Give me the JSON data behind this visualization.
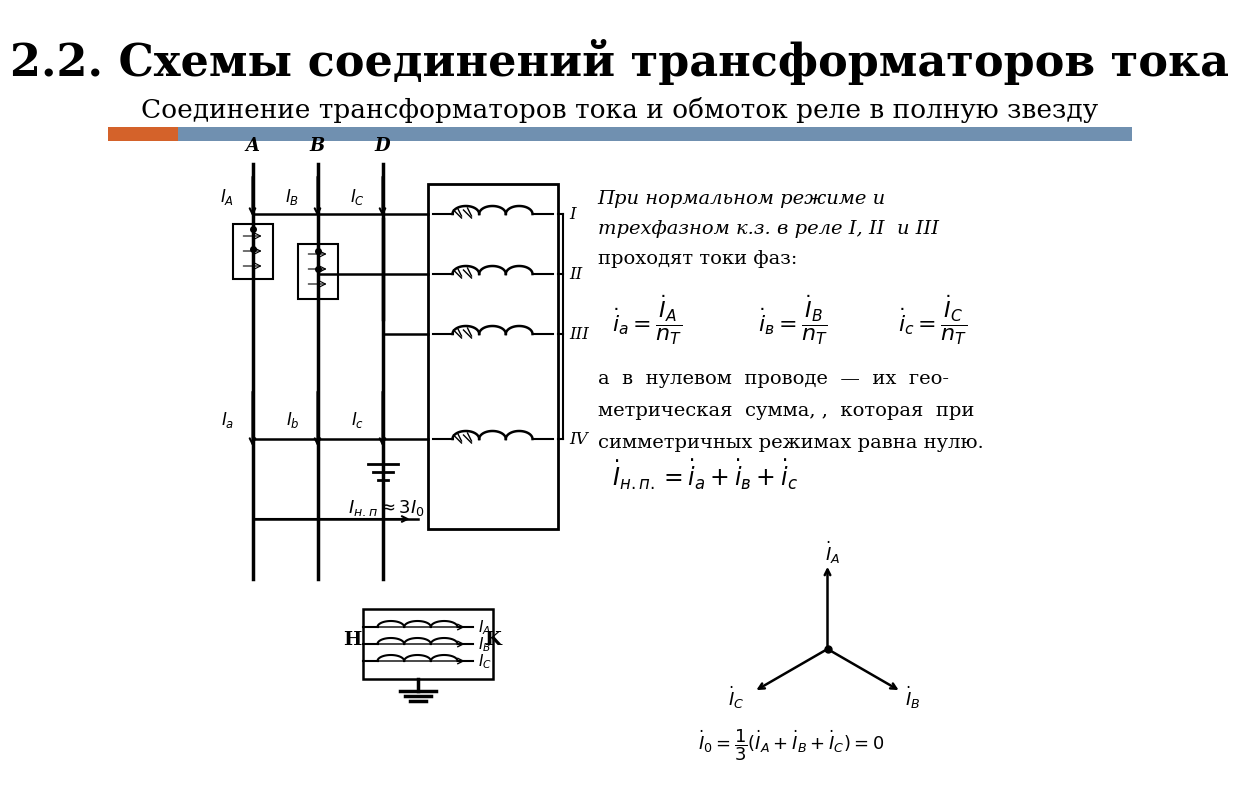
{
  "title": "2.2. Схемы соединений трансформаторов тока",
  "subtitle": "Соединение трансформаторов тока и обмоток реле в полную звезду",
  "title_fontsize": 32,
  "subtitle_fontsize": 19,
  "bg_color": "#ffffff",
  "bar_color_orange": "#d4622a",
  "bar_color_blue": "#7090b0",
  "text1_italic": "При нормальном режиме и\nтрехфазном к.з. в реле I, II  и III\nпроходят токи фаз:",
  "text2": "а  в  нулевом  проводе  —  их  гео-\nметрическая  сумма, ,  которая  при\nсимметричных режимах равна нулю."
}
